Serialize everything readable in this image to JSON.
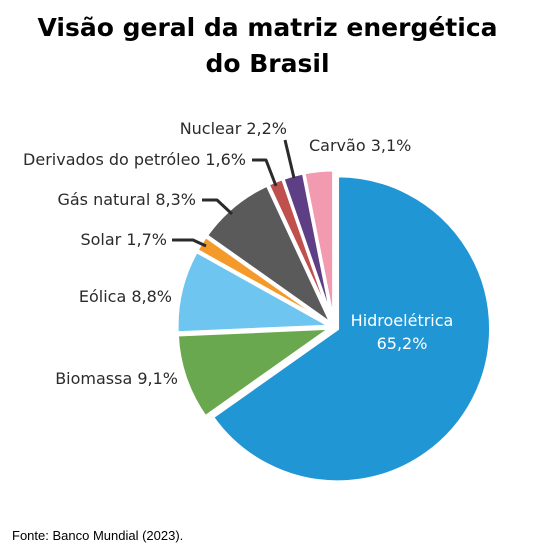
{
  "chart_data": {
    "type": "pie",
    "title": [
      "Visão geral da matriz energética",
      "do Brasil"
    ],
    "slices": [
      {
        "label": "Hidroelétrica",
        "value_text": "65,2%",
        "value": 65.2,
        "color": "#2196d4",
        "style": "inner"
      },
      {
        "label": "Biomassa",
        "value_text": "9,1%",
        "value": 9.1,
        "color": "#6aa84f",
        "style": "outer"
      },
      {
        "label": "Eólica",
        "value_text": "8,8%",
        "value": 8.8,
        "color": "#6ec6f0",
        "style": "outer"
      },
      {
        "label": "Solar",
        "value_text": "1,7%",
        "value": 1.7,
        "color": "#f39a2b",
        "style": "outer"
      },
      {
        "label": "Gás natural",
        "value_text": "8,3%",
        "value": 8.3,
        "color": "#5a5a5a",
        "style": "outer"
      },
      {
        "label": "Derivados do petróleo",
        "value_text": "1,6%",
        "value": 1.6,
        "color": "#c0504d",
        "style": "outer"
      },
      {
        "label": "Nuclear",
        "value_text": "2,2%",
        "value": 2.2,
        "color": "#5e3f86",
        "style": "outer"
      },
      {
        "label": "Carvão",
        "value_text": "3,1%",
        "value": 3.1,
        "color": "#f29bb0",
        "style": "outer"
      }
    ]
  },
  "source": "Fonte:  Banco Mundial  (2023)."
}
